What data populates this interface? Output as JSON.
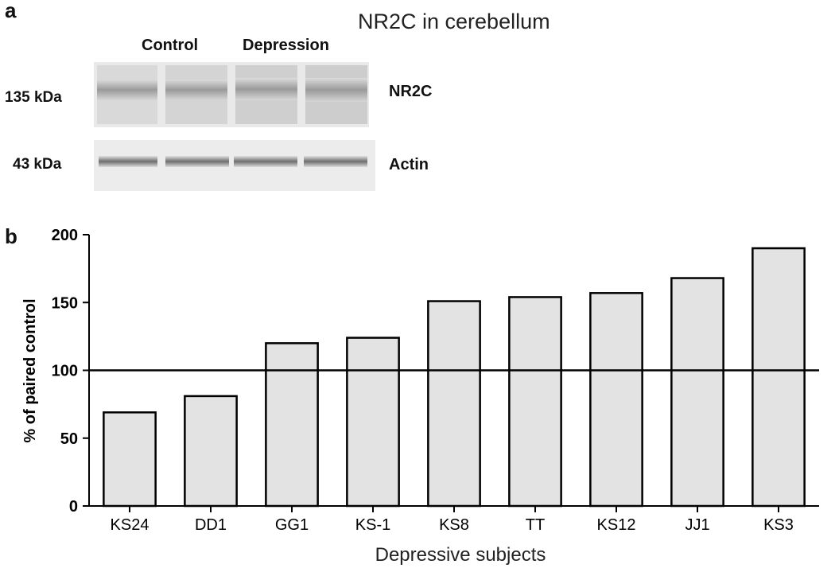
{
  "panel_a": {
    "letter": "a",
    "title": "NR2C in cerebellum",
    "group_labels": [
      "Control",
      "Depression"
    ],
    "blots": [
      {
        "mw": "135 kDa",
        "protein": "NR2C"
      },
      {
        "mw": "43 kDa",
        "protein": "Actin"
      }
    ]
  },
  "panel_b": {
    "letter": "b"
  },
  "chart_data": {
    "type": "bar",
    "categories": [
      "KS24",
      "DD1",
      "GG1",
      "KS-1",
      "KS8",
      "TT",
      "KS12",
      "JJ1",
      "KS3"
    ],
    "values": [
      69,
      81,
      120,
      124,
      151,
      154,
      157,
      168,
      190
    ],
    "xlabel": "Depressive subjects",
    "ylabel": "% of paired control",
    "ylim": [
      0,
      200
    ],
    "yticks": [
      0,
      50,
      100,
      150,
      200
    ],
    "reference_line": 100,
    "grid": false,
    "bar_color": "#e3e3e3"
  }
}
